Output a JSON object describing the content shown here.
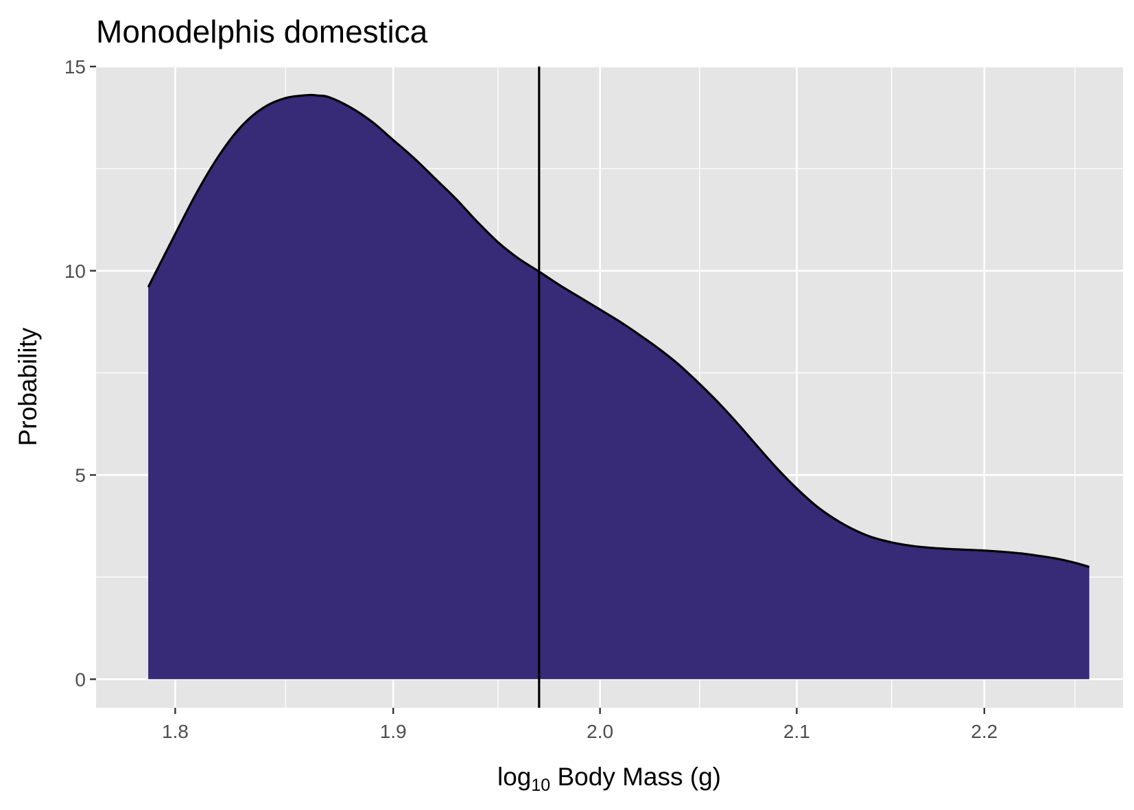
{
  "chart_data": {
    "type": "area",
    "title": "Monodelphis domestica",
    "xlabel": "log10 Body Mass (g)",
    "xlabel_parts": {
      "pre": "log",
      "sub": "10",
      "post": " Body Mass (g)"
    },
    "ylabel": "Probability",
    "x_scale": "log10",
    "xlim": [
      1.765,
      2.277
    ],
    "ylim": [
      -0.7,
      15
    ],
    "x_ticks": [
      1.8,
      1.9,
      2.0,
      2.1,
      2.2
    ],
    "x_tick_labels": [
      "1.8",
      "1.9",
      "2.0",
      "2.1",
      "2.2"
    ],
    "x_minor_ticks": [
      1.85,
      1.95,
      2.05,
      2.15,
      2.25
    ],
    "y_ticks": [
      0,
      5,
      10,
      15
    ],
    "y_tick_labels": [
      "0",
      "5",
      "10",
      "15"
    ],
    "y_minor_ticks": [
      2.5,
      7.5,
      12.5
    ],
    "grid": true,
    "legend": "none",
    "vline_x": 1.97,
    "fill_color": "#372A77",
    "line_color": "#000000",
    "panel_color": "#E5E5E5",
    "grid_color": "#FFFFFF",
    "series": [
      {
        "x": [
          1.788,
          1.8,
          1.81,
          1.82,
          1.83,
          1.84,
          1.85,
          1.86,
          1.865,
          1.87,
          1.88,
          1.89,
          1.9,
          1.91,
          1.92,
          1.93,
          1.94,
          1.95,
          1.96,
          1.97,
          1.98,
          1.99,
          2.0,
          2.01,
          2.02,
          2.03,
          2.04,
          2.05,
          2.06,
          2.07,
          2.08,
          2.09,
          2.1,
          2.11,
          2.12,
          2.13,
          2.14,
          2.15,
          2.16,
          2.17,
          2.18,
          2.19,
          2.2,
          2.21,
          2.22,
          2.23,
          2.24,
          2.25,
          2.258
        ],
        "y": [
          9.6,
          10.9,
          11.95,
          12.85,
          13.55,
          14.0,
          14.23,
          14.3,
          14.29,
          14.25,
          14.0,
          13.65,
          13.2,
          12.75,
          12.25,
          11.75,
          11.2,
          10.7,
          10.3,
          9.98,
          9.65,
          9.35,
          9.05,
          8.75,
          8.42,
          8.07,
          7.68,
          7.23,
          6.75,
          6.23,
          5.68,
          5.15,
          4.67,
          4.25,
          3.92,
          3.66,
          3.47,
          3.35,
          3.27,
          3.22,
          3.19,
          3.17,
          3.15,
          3.12,
          3.08,
          3.02,
          2.95,
          2.85,
          2.75
        ]
      }
    ]
  }
}
